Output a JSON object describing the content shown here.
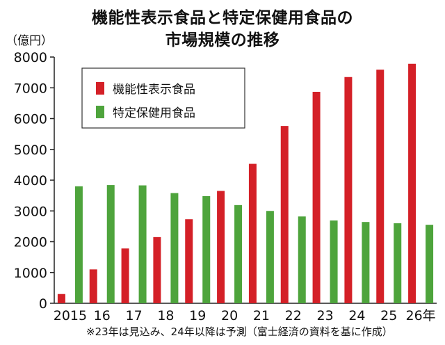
{
  "title_lines": [
    "機能性表示食品と特定保健用食品の",
    "市場規模の推移"
  ],
  "footnote": "※23年は見込み、24年以降は予測（富士経済の資料を基に作成）",
  "chart_data": {
    "type": "bar",
    "title": "機能性表示食品と特定保健用食品の市場規模の推移",
    "ylabel": "（億円）",
    "xlabel": "",
    "categories": [
      "2015",
      "16",
      "17",
      "18",
      "19",
      "20",
      "21",
      "22",
      "23",
      "24",
      "25",
      "26年"
    ],
    "ylim": [
      0,
      8000
    ],
    "yticks": [
      0,
      1000,
      2000,
      3000,
      4000,
      5000,
      6000,
      7000,
      8000
    ],
    "legend_position": "top-left",
    "grid": false,
    "series": [
      {
        "name": "機能性表示食品",
        "color": "#d42027",
        "values": [
          300,
          1100,
          1780,
          2150,
          2730,
          3650,
          4530,
          5760,
          6870,
          7350,
          7590,
          7780
        ]
      },
      {
        "name": "特定保健用食品",
        "color": "#4ea43c",
        "values": [
          3800,
          3840,
          3830,
          3580,
          3480,
          3190,
          3000,
          2820,
          2690,
          2640,
          2600,
          2550
        ]
      }
    ]
  }
}
